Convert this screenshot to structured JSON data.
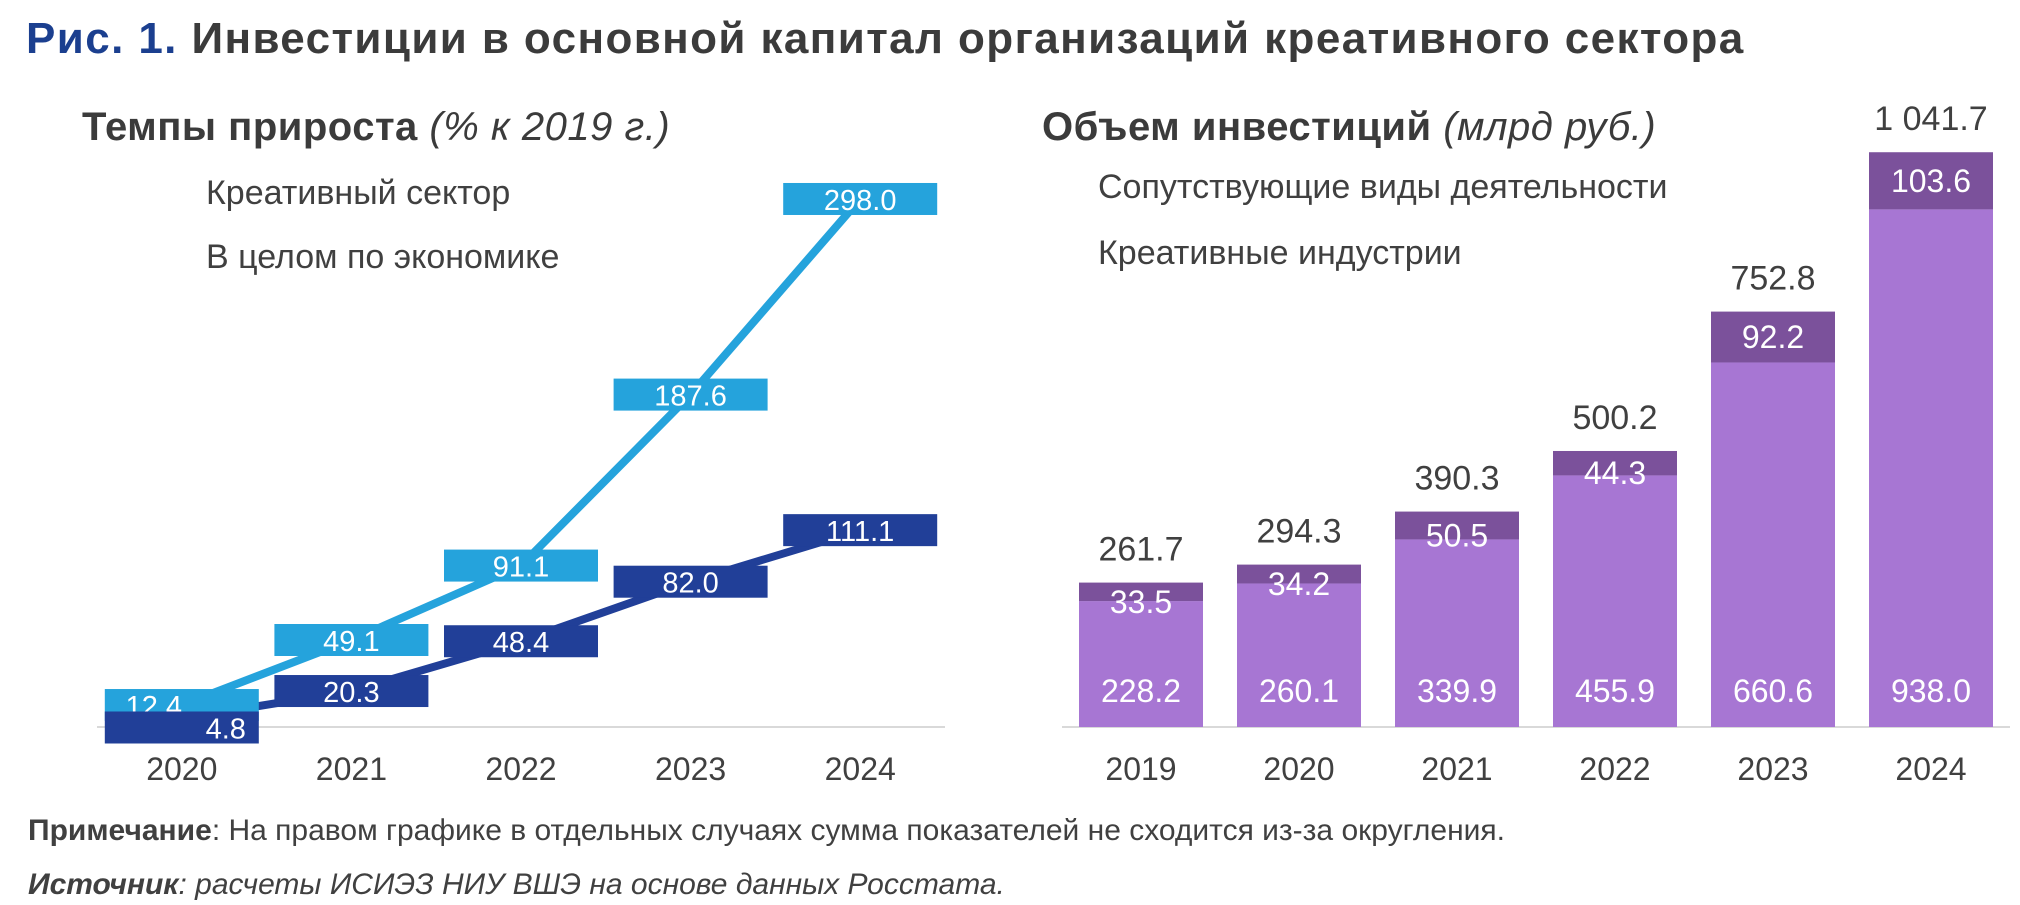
{
  "title": {
    "prefix": "Рис. 1.",
    "text": "Инвестиции в основной капитал организаций креативного сектора"
  },
  "left_subtitle": {
    "main": "Темпы прироста",
    "unit": "(% к 2019 г.)"
  },
  "right_subtitle": {
    "main": "Объем инвестиций",
    "unit": "(млрд руб.)"
  },
  "colors": {
    "creative_sector": "#25a3dc",
    "economy": "#213f98",
    "related": "#7b519b",
    "industries": "#a776d3",
    "title_blue": "#1b3f8f"
  },
  "chart_data": [
    {
      "type": "line",
      "x": [
        "2020",
        "2021",
        "2022",
        "2023",
        "2024"
      ],
      "series": [
        {
          "name": "Креативный сектор",
          "values": [
            12.4,
            49.1,
            91.1,
            187.6,
            298.0
          ]
        },
        {
          "name": "В целом по экономике",
          "values": [
            4.8,
            20.3,
            48.4,
            82.0,
            111.1
          ]
        }
      ],
      "ylim": [
        0,
        320
      ],
      "grid": false,
      "legend": "top-left"
    },
    {
      "type": "bar",
      "stacked": true,
      "categories": [
        "2019",
        "2020",
        "2021",
        "2022",
        "2023",
        "2024"
      ],
      "series": [
        {
          "name": "Креативные индустрии",
          "values": [
            228.2,
            260.1,
            339.9,
            455.9,
            660.6,
            938.0
          ]
        },
        {
          "name": "Сопутствующие виды деятельности",
          "values": [
            33.5,
            34.2,
            50.5,
            44.3,
            92.2,
            103.6
          ]
        }
      ],
      "totals": [
        "261.7",
        "294.3",
        "390.3",
        "500.2",
        "752.8",
        "1 041.7"
      ],
      "ylim": [
        0,
        1100
      ],
      "grid": false,
      "legend": "top-left"
    }
  ],
  "note": {
    "label": "Примечание",
    "text": ": На правом графике в отдельных случаях сумма показателей не сходится из-за округления."
  },
  "source": {
    "label": "Источник",
    "text": ": расчеты ИСИЭЗ НИУ ВШЭ на основе данных Росстата."
  }
}
